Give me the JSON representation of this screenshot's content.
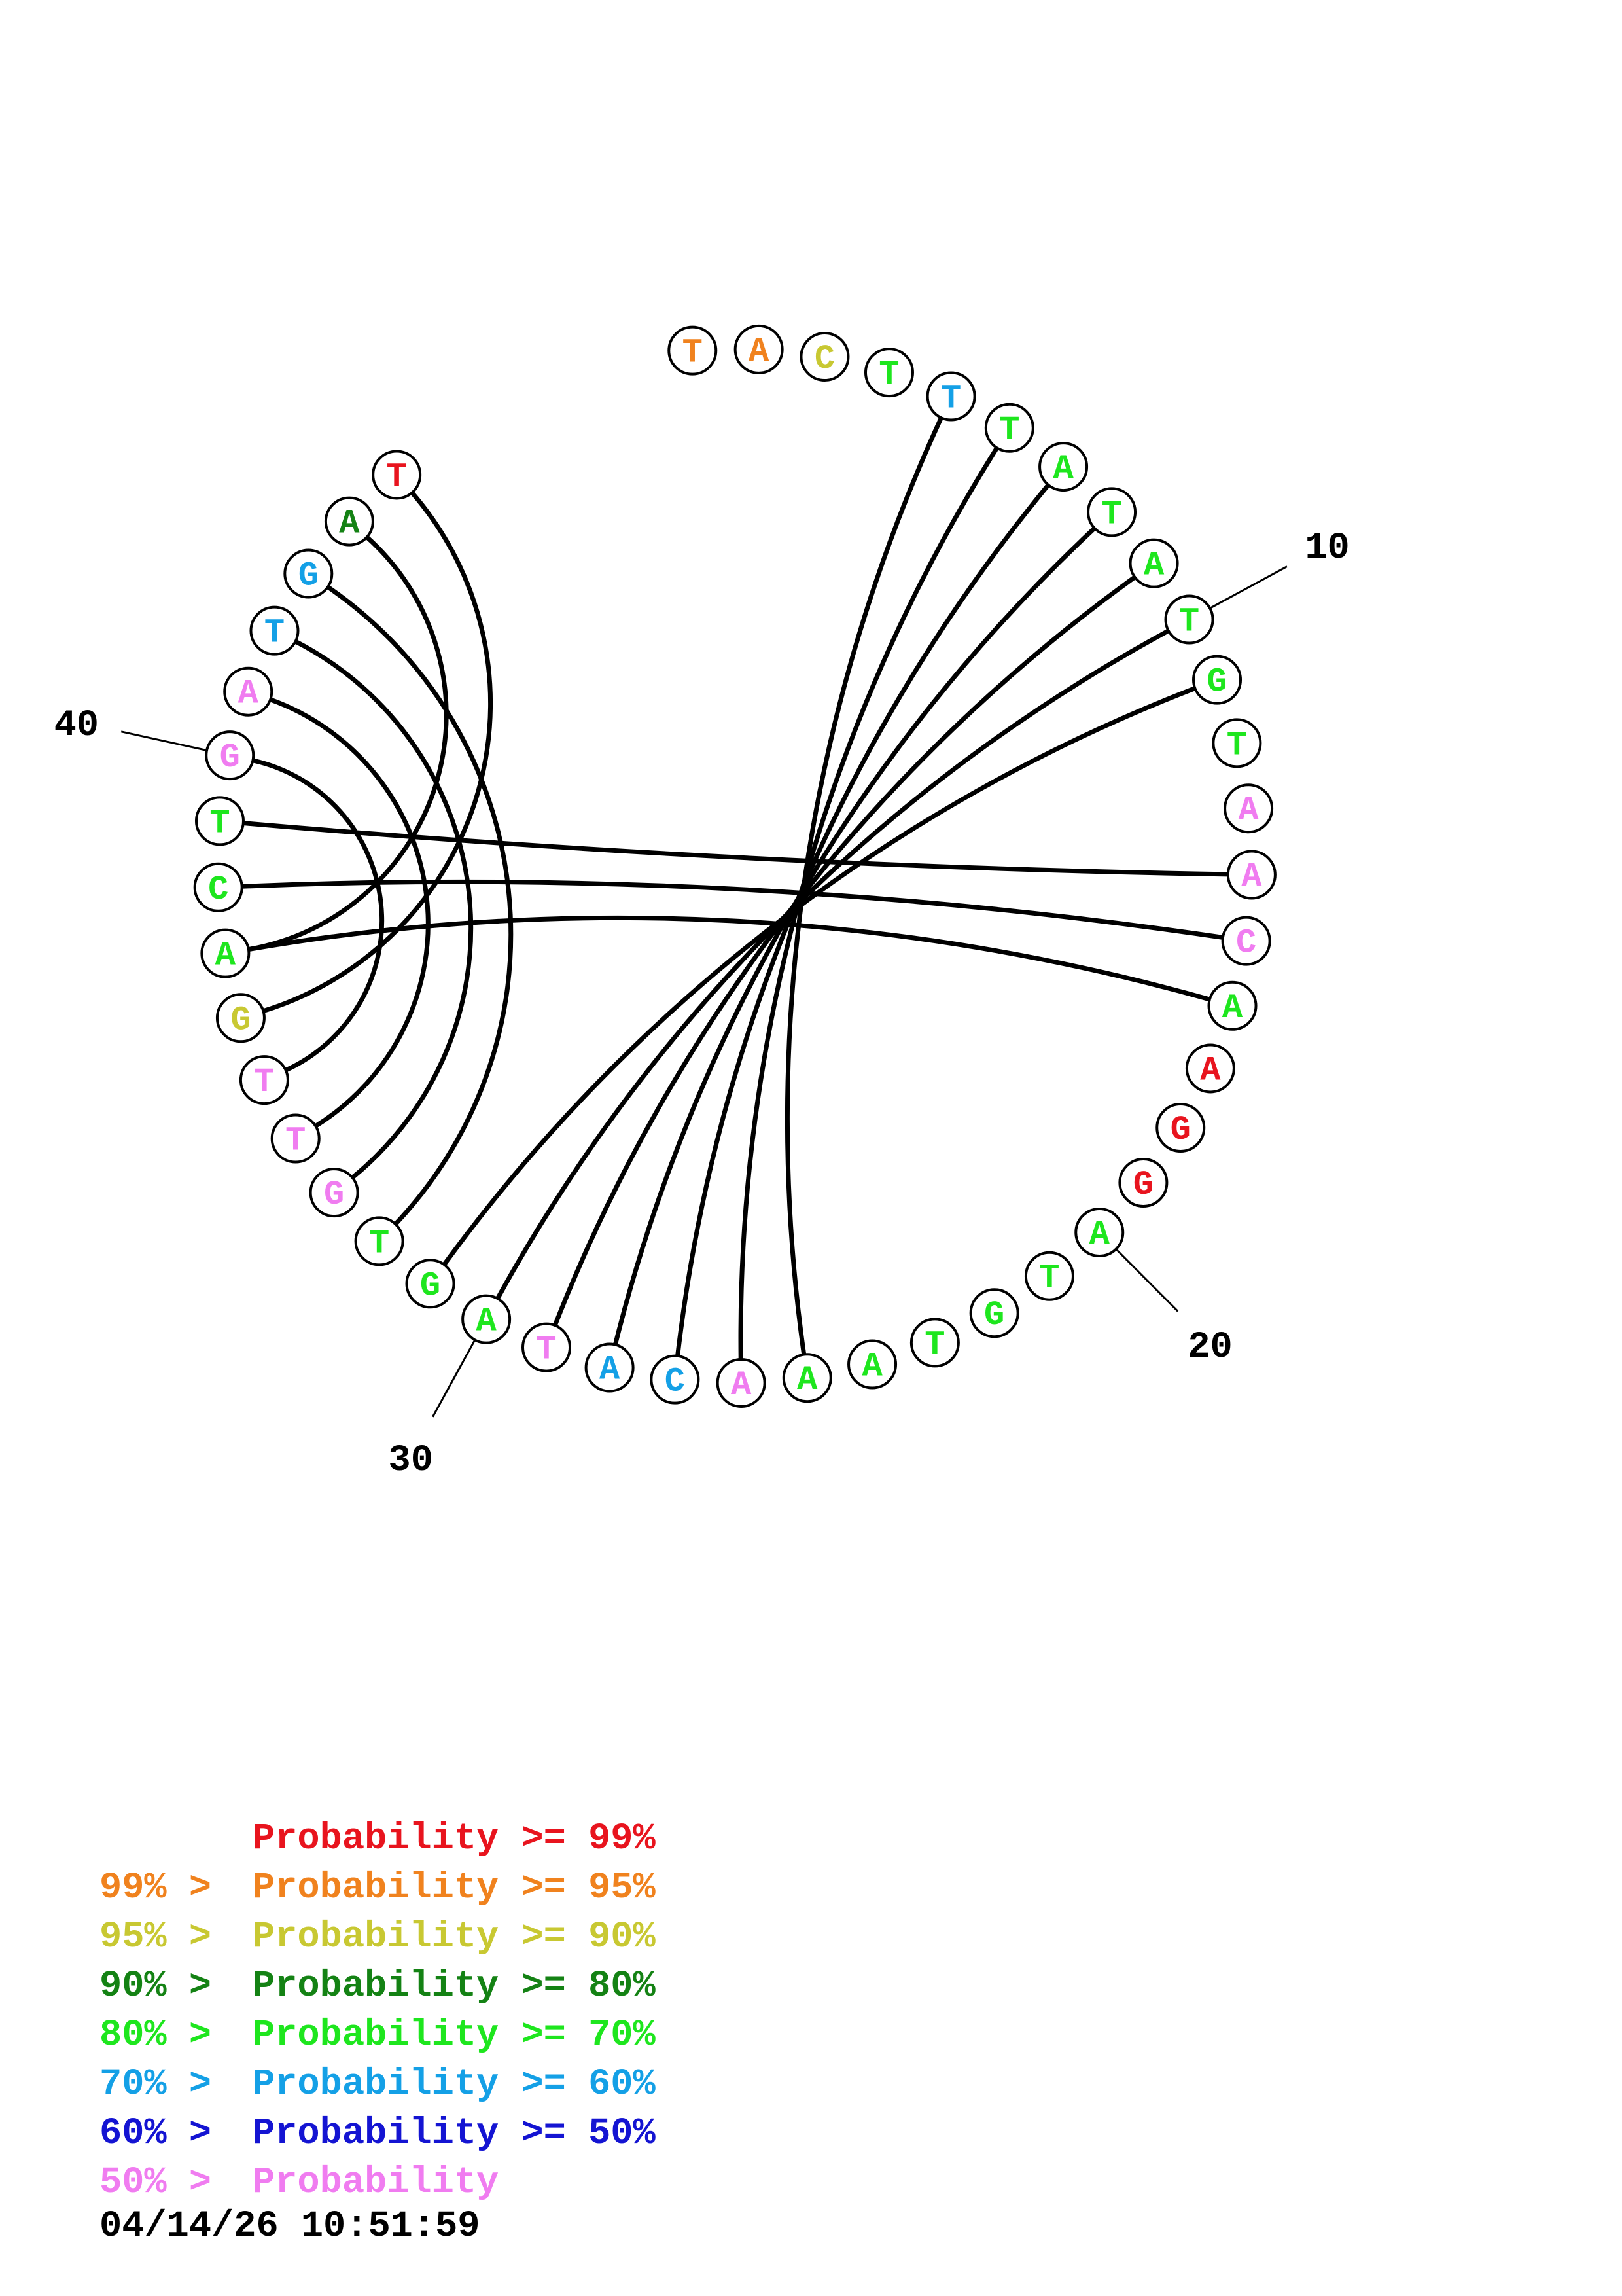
{
  "sequence": [
    "T",
    "A",
    "C",
    "T",
    "T",
    "T",
    "A",
    "T",
    "A",
    "T",
    "G",
    "T",
    "A",
    "A",
    "C",
    "A",
    "A",
    "G",
    "G",
    "A",
    "T",
    "G",
    "T",
    "A",
    "A",
    "A",
    "C",
    "A",
    "T",
    "A",
    "G",
    "T",
    "G",
    "T",
    "T",
    "G",
    "A",
    "C",
    "T",
    "G",
    "A",
    "T",
    "G",
    "A",
    "T"
  ],
  "base_color_levels": [
    1,
    1,
    2,
    4,
    5,
    4,
    4,
    4,
    4,
    4,
    4,
    4,
    7,
    7,
    7,
    4,
    0,
    0,
    0,
    4,
    4,
    4,
    4,
    4,
    4,
    7,
    5,
    5,
    7,
    4,
    4,
    4,
    7,
    7,
    7,
    2,
    4,
    4,
    4,
    7,
    7,
    5,
    5,
    3,
    0
  ],
  "pairs": [
    [
      4,
      24
    ],
    [
      5,
      25
    ],
    [
      6,
      26
    ],
    [
      7,
      27
    ],
    [
      8,
      28
    ],
    [
      9,
      29
    ],
    [
      10,
      30
    ],
    [
      13,
      38
    ],
    [
      14,
      37
    ],
    [
      15,
      36
    ],
    [
      31,
      42
    ],
    [
      32,
      41
    ],
    [
      33,
      40
    ],
    [
      34,
      39
    ],
    [
      35,
      44
    ],
    [
      36,
      43
    ]
  ],
  "position_labels": [
    {
      "index": 10,
      "text": "10"
    },
    {
      "index": 20,
      "text": "20"
    },
    {
      "index": 30,
      "text": "30"
    },
    {
      "index": 40,
      "text": "40"
    }
  ],
  "colors": {
    "p99": "#e8141e",
    "p95": "#f0821e",
    "p90": "#c8c832",
    "p80": "#148214",
    "p70": "#1ee61e",
    "p60": "#14a0e6",
    "p50": "#1414d2",
    "below50": "#f07cf0",
    "pair_line": "#000000",
    "ring": "#000000"
  },
  "legend": [
    {
      "left": "",
      "right": "Probability >= 99%",
      "color_key": "p99"
    },
    {
      "left": "99% > ",
      "right": "Probability >= 95%",
      "color_key": "p95"
    },
    {
      "left": "95% > ",
      "right": "Probability >= 90%",
      "color_key": "p90"
    },
    {
      "left": "90% > ",
      "right": "Probability >= 80%",
      "color_key": "p80"
    },
    {
      "left": "80% > ",
      "right": "Probability >= 70%",
      "color_key": "p70"
    },
    {
      "left": "70% > ",
      "right": "Probability >= 60%",
      "color_key": "p60"
    },
    {
      "left": "60% > ",
      "right": "Probability >= 50%",
      "color_key": "p50"
    },
    {
      "left": "50% > ",
      "right": "Probability",
      "color_key": "below50"
    }
  ],
  "timestamp": "04/14/26 10:51:59"
}
